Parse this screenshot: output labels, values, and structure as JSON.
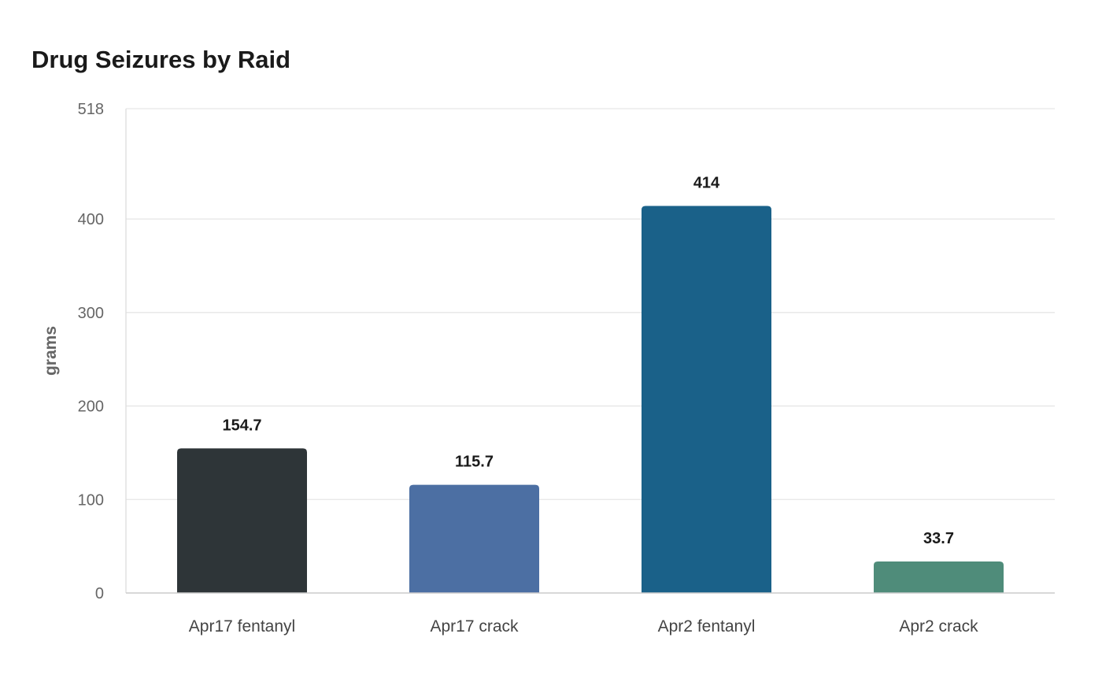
{
  "chart_data": {
    "type": "bar",
    "title": "Drug Seizures by Raid",
    "xlabel": "",
    "ylabel": "grams",
    "categories": [
      "Apr17 fentanyl",
      "Apr17 crack",
      "Apr2 fentanyl",
      "Apr2 crack"
    ],
    "values": [
      154.7,
      115.7,
      414,
      33.7
    ],
    "value_labels": [
      "154.7",
      "115.7",
      "414",
      "33.7"
    ],
    "colors": [
      "#2e3538",
      "#4c6fa3",
      "#1a6189",
      "#4f8c7a"
    ],
    "ylim": [
      0,
      518
    ],
    "yticks": [
      0,
      100,
      200,
      300,
      400,
      518
    ],
    "grid": true,
    "legend": "none"
  }
}
